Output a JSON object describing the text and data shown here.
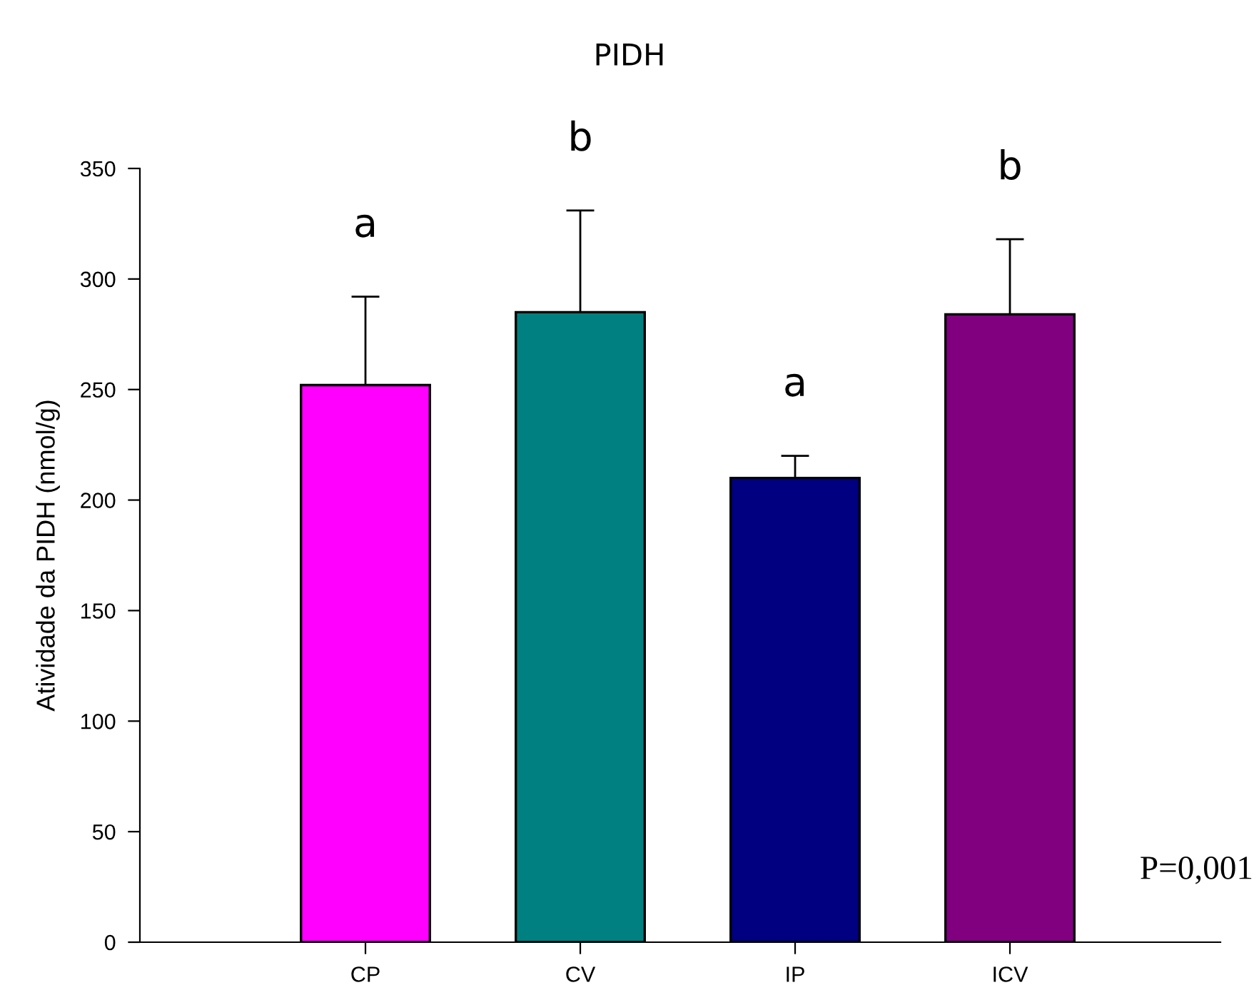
{
  "chart_data": {
    "type": "bar",
    "title": "PIDH",
    "ylabel": "Atividade da PIDH (nmol/g)",
    "categories": [
      "CP",
      "CV",
      "IP",
      "ICV"
    ],
    "values": [
      252,
      285,
      210,
      284
    ],
    "colors": [
      "#ff00ff",
      "#008080",
      "#000080",
      "#800080"
    ],
    "errors": [
      [
        252,
        292
      ],
      [
        285,
        331
      ],
      [
        210,
        220
      ],
      [
        284,
        318
      ]
    ],
    "ylim": [
      0,
      350
    ],
    "yticks": [
      0,
      50,
      100,
      150,
      200,
      250,
      300,
      350
    ],
    "grid": false,
    "legend": false,
    "annotations": [
      "a",
      "b",
      "a",
      "b",
      "P=0,001"
    ]
  }
}
